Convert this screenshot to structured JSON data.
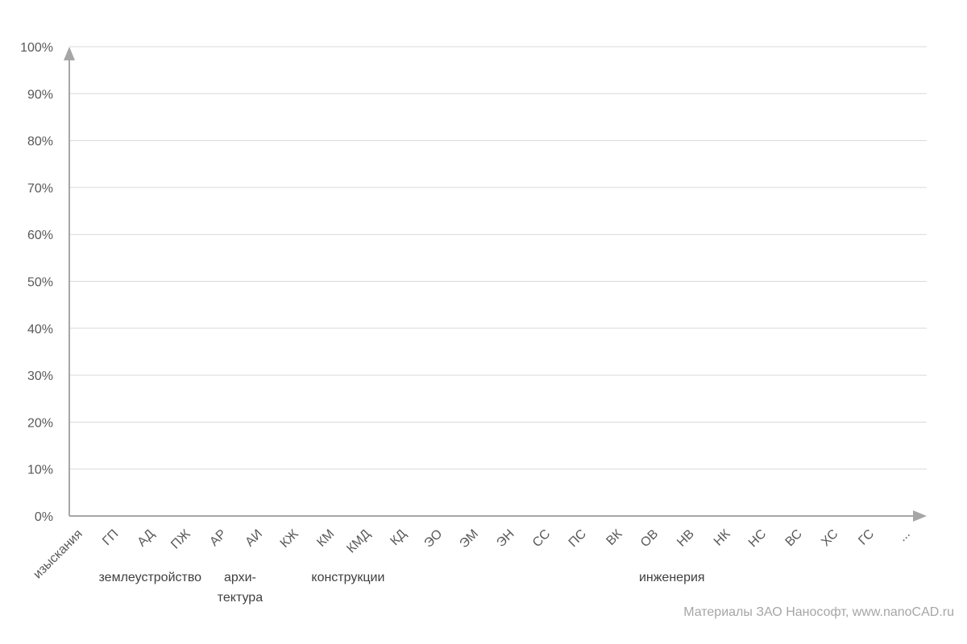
{
  "chart_data": {
    "type": "bar",
    "title": "",
    "xlabel": "",
    "ylabel": "",
    "ylim": [
      0,
      100
    ],
    "y_ticks": [
      "0%",
      "10%",
      "20%",
      "30%",
      "40%",
      "50%",
      "60%",
      "70%",
      "80%",
      "90%",
      "100%"
    ],
    "categories": [
      "изыскания",
      "ГП",
      "АД",
      "ПЖ",
      "АР",
      "АИ",
      "КЖ",
      "КМ",
      "КМД",
      "КД",
      "ЭО",
      "ЭМ",
      "ЭН",
      "СС",
      "ПС",
      "ВК",
      "ОВ",
      "НВ",
      "НК",
      "НС",
      "ВС",
      "ХС",
      "ГС",
      "..."
    ],
    "category_groups": [
      {
        "lines": [
          "землеустройство"
        ],
        "from": 1,
        "to": 3
      },
      {
        "lines": [
          "архи-",
          "тектура"
        ],
        "from": 4,
        "to": 5
      },
      {
        "lines": [
          "конструкции"
        ],
        "from": 6,
        "to": 9
      },
      {
        "lines": [
          "инженерия"
        ],
        "from": 10,
        "to": 23
      }
    ],
    "series": [],
    "grid": true,
    "colors": {
      "grid": "#d9d9d9",
      "axis": "#a6a6a6",
      "text": "#595959",
      "group_text": "#404040"
    }
  },
  "footer": {
    "credit": "Материалы ЗАО Нанософт, www.nanoCAD.ru"
  }
}
